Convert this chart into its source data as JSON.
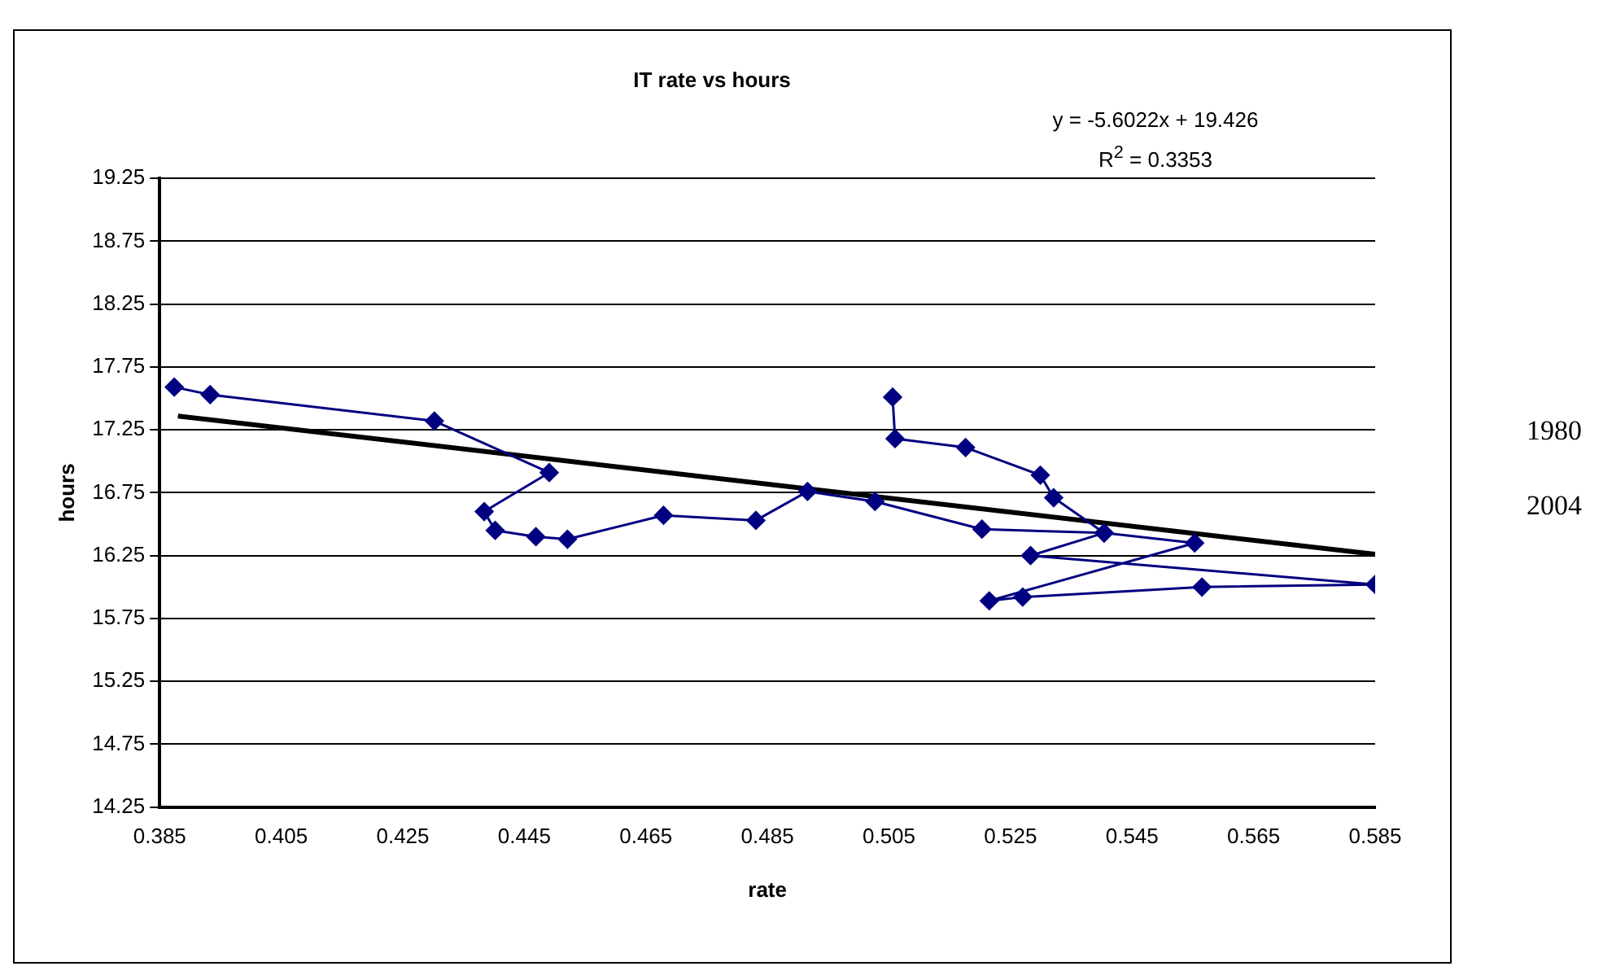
{
  "chart_data": {
    "type": "line",
    "title": "IT rate vs hours",
    "xlabel": "rate",
    "ylabel": "hours",
    "xlim": [
      0.385,
      0.585
    ],
    "xticks": [
      0.385,
      0.405,
      0.425,
      0.445,
      0.465,
      0.485,
      0.505,
      0.525,
      0.545,
      0.565,
      0.585
    ],
    "ylim": [
      14.25,
      19.25
    ],
    "yticks": [
      14.25,
      14.75,
      15.25,
      15.75,
      16.25,
      16.75,
      17.25,
      17.75,
      18.25,
      18.75,
      19.25
    ],
    "grid": "y",
    "legend": false,
    "series": [
      {
        "marker": "diamond",
        "color": "#000080",
        "x": [
          0.3874,
          0.3933,
          0.4302,
          0.4491,
          0.4384,
          0.4402,
          0.4469,
          0.4521,
          0.4679,
          0.4831,
          0.4916,
          0.5027,
          0.5203,
          0.5404,
          0.5553,
          0.5215,
          0.527,
          0.5565,
          0.585,
          0.5283,
          0.5404,
          0.5321,
          0.5299,
          0.5176,
          0.506,
          0.5056
        ],
        "values": [
          17.59,
          17.53,
          17.32,
          16.91,
          16.6,
          16.45,
          16.4,
          16.38,
          16.57,
          16.53,
          16.76,
          16.68,
          16.46,
          16.43,
          16.35,
          15.89,
          15.92,
          16.0,
          16.02,
          16.25,
          16.43,
          16.71,
          16.89,
          17.11,
          17.18,
          17.51
        ]
      },
      {
        "marker": "none",
        "color": "#000000",
        "x": [
          0.388,
          0.585
        ],
        "values": [
          17.36,
          16.26
        ]
      }
    ],
    "annotations": [
      "y = -5.6022x + 19.426",
      "R$^{2}$ = 0.3353",
      "1980",
      "2004"
    ]
  }
}
